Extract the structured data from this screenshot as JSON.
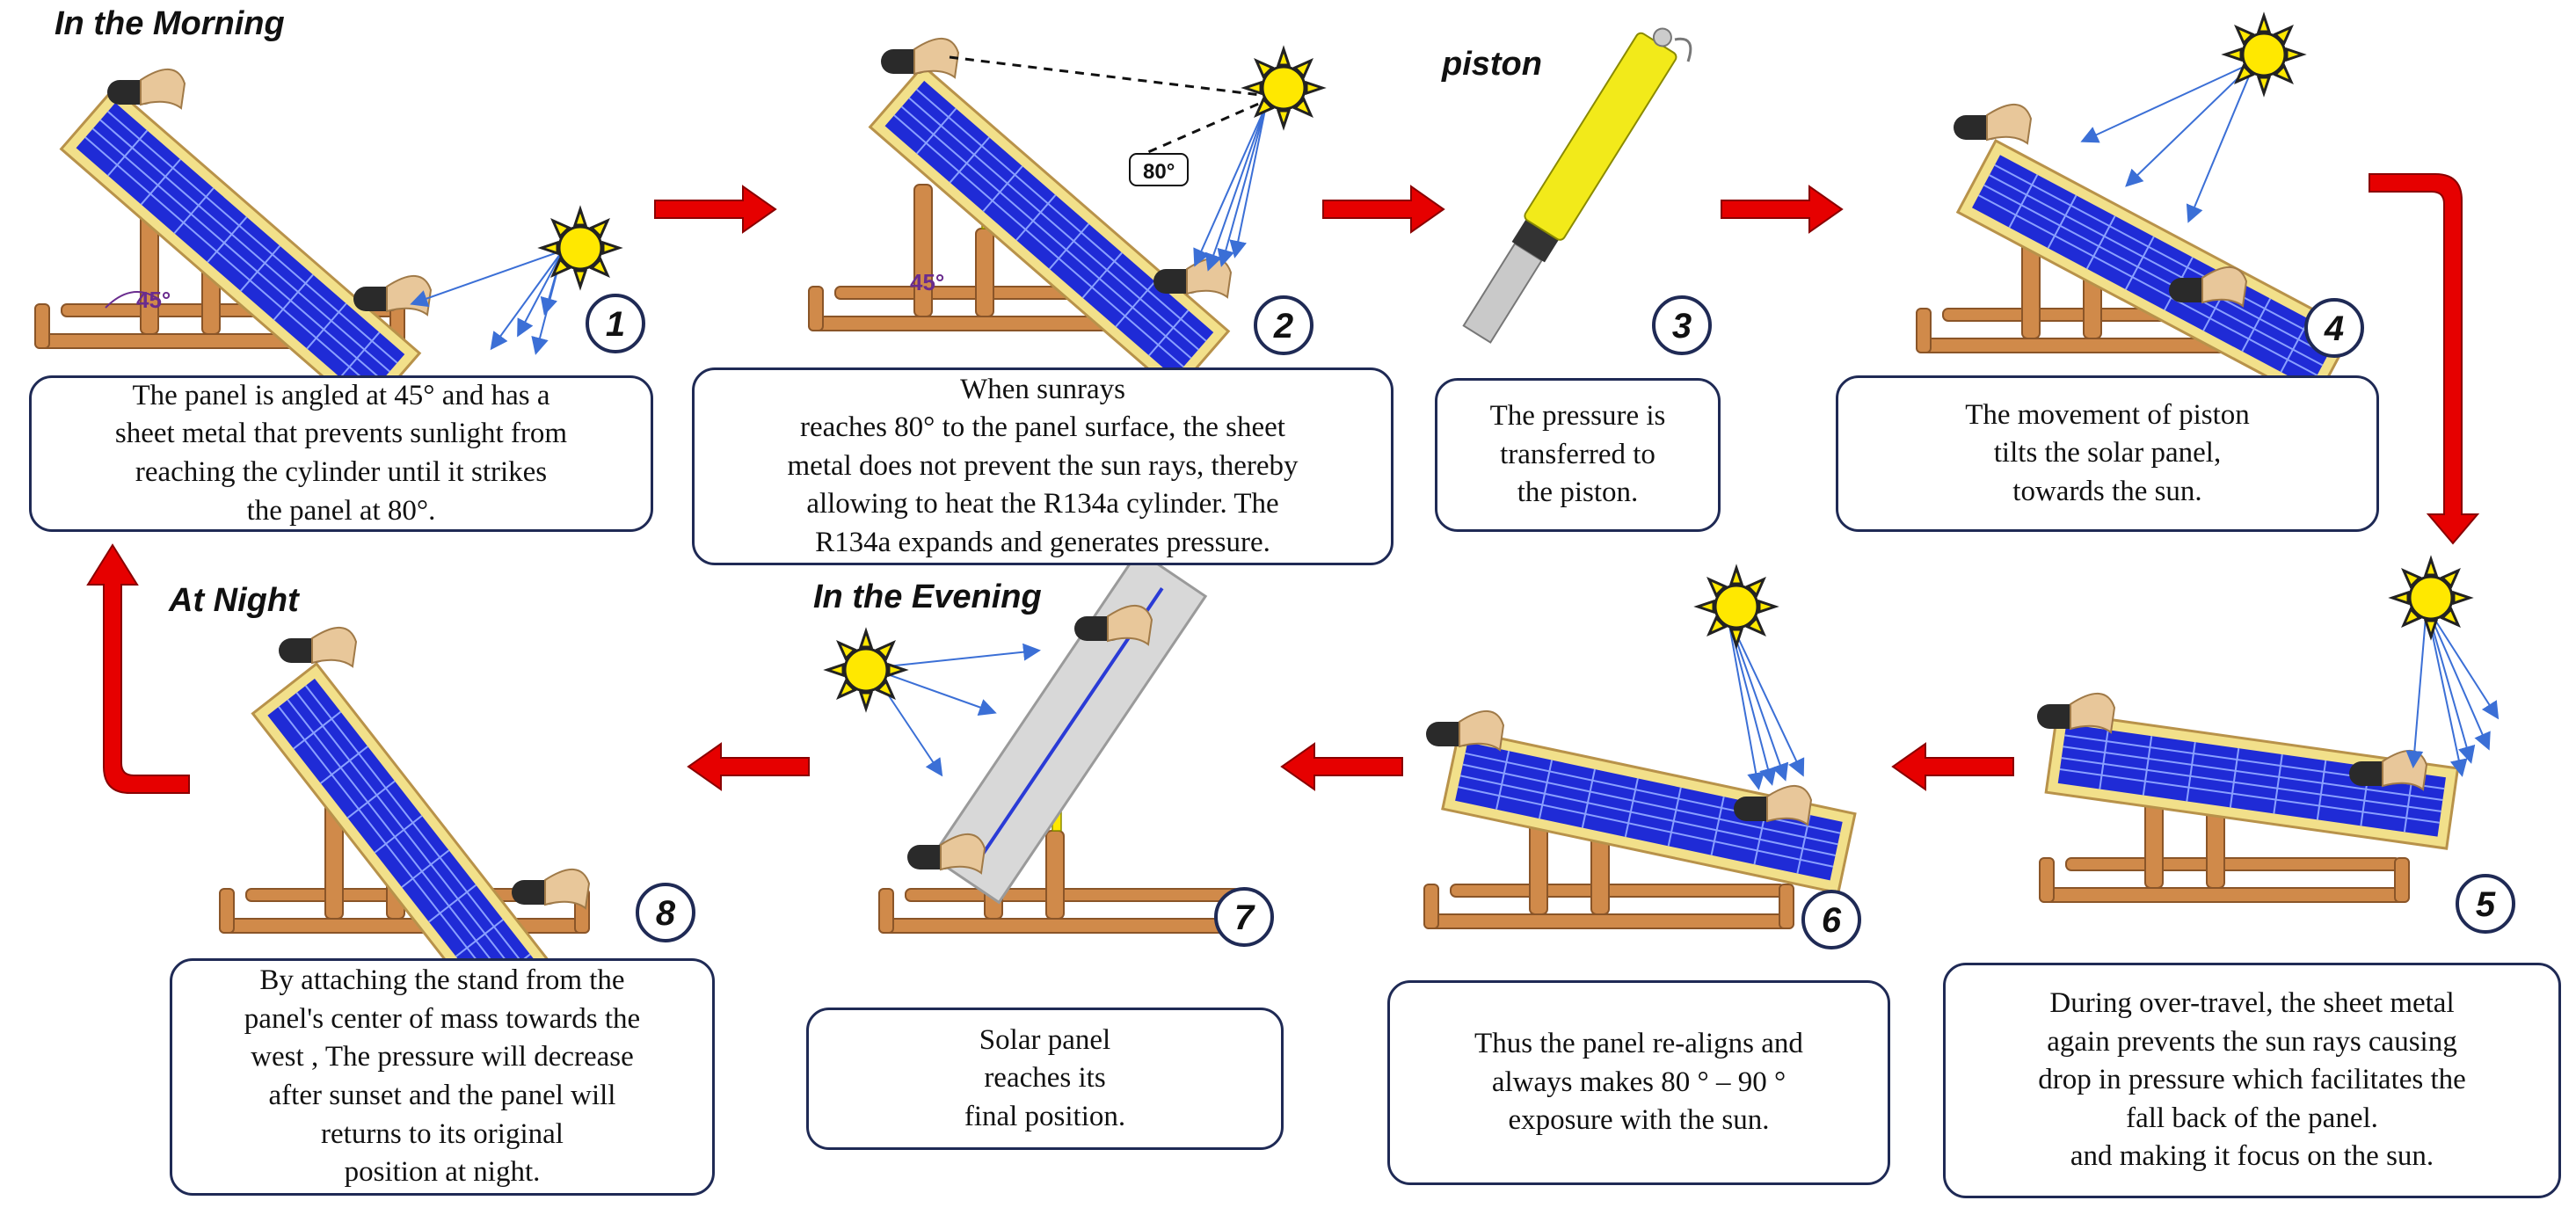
{
  "headings": {
    "morning": "In the Morning",
    "piston": "piston",
    "night": "At Night",
    "evening": "In the Evening"
  },
  "angles": {
    "a45": "45°",
    "a80": "80°"
  },
  "steps": [
    {
      "number": "1",
      "caption": "The panel is angled at 45° and has a\nsheet metal that prevents sunlight from\nreaching the cylinder until it strikes\nthe panel at 80°."
    },
    {
      "number": "2",
      "caption": "When sunrays\nreaches 80° to the panel surface, the sheet\nmetal does not  prevent  the sun rays, thereby\nallowing to heat the R134a cylinder. The\nR134a expands and generates pressure."
    },
    {
      "number": "3",
      "caption": "The pressure is\ntransferred to\nthe piston."
    },
    {
      "number": "4",
      "caption": "The movement of piston\ntilts the solar panel,\ntowards the sun."
    },
    {
      "number": "5",
      "caption": "During over-travel, the sheet metal\nagain prevents the sun rays causing\ndrop in pressure which facilitates the\nfall back of the panel.\nand making it focus on the sun."
    },
    {
      "number": "6",
      "caption": "Thus the panel re-aligns and\nalways makes 80 ° – 90 °\nexposure with the sun."
    },
    {
      "number": "7",
      "caption": "Solar panel\nreaches its\nfinal position."
    },
    {
      "number": "8",
      "caption": "By attaching the stand from the\npanel's center of mass towards the\nwest , The pressure will  decrease\nafter sunset and the panel will\nreturns to its original\nposition at night."
    }
  ],
  "colors": {
    "arrow": "#e60000",
    "panel": "#1f2bd6",
    "frame": "#f2e08a",
    "wood": "#d08a4a",
    "sun": "#ffe800",
    "ray": "#3b6fd6",
    "box_border": "#1f2a55"
  }
}
